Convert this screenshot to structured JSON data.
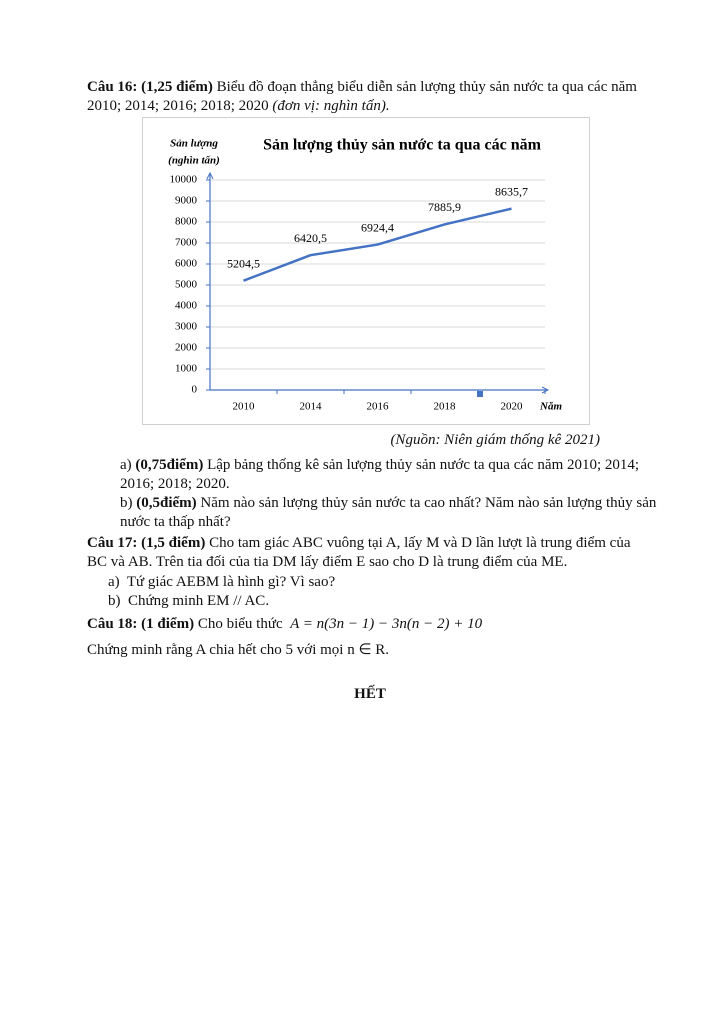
{
  "question_16": {
    "label": "Câu 16: (1,25 điểm)",
    "text": "Biểu đồ đoạn thẳng biểu diễn sản lượng thủy sản nước ta qua các năm 2010; 2014; 2016; 2018; 2020",
    "unit_note": "(đơn vị: nghìn tấn)."
  },
  "chart_data": {
    "type": "line",
    "title": "Sản lượng thủy sản nước ta qua các năm",
    "ylabel": [
      "Sản lượng",
      "(nghìn tấn)"
    ],
    "xlabel": "Năm",
    "categories": [
      "2010",
      "2014",
      "2016",
      "2018",
      "2020"
    ],
    "values": [
      5204.5,
      6420.5,
      6924.4,
      7885.9,
      8635.7
    ],
    "value_labels": [
      "5204,5",
      "6420,5",
      "6924,4",
      "7885,9",
      "8635,7"
    ],
    "color": "#4472c4",
    "ylim": [
      0,
      10000
    ],
    "yticks": [
      0,
      1000,
      2000,
      3000,
      4000,
      5000,
      6000,
      7000,
      8000,
      9000,
      10000
    ],
    "grid": true
  },
  "source": "(Nguồn: Niên giám thống kê 2021)",
  "question_16_parts": [
    {
      "label": "a)",
      "points": "(0,75điểm)",
      "text": "Lập bảng thống kê sản lượng thủy sản nước ta qua các năm 2010; 2014; 2016; 2018; 2020."
    },
    {
      "label": "b)",
      "points": "(0,5điểm)",
      "text": "Năm nào sản lượng thủy sản nước ta cao nhất? Năm nào sản lượng thủy sản nước ta thấp nhất?"
    }
  ],
  "question_17": {
    "label": "Câu 17: (1,5 điểm)",
    "text": "Cho tam giác ABC vuông tại A, lấy M và D lần lượt là trung điểm của BC và AB. Trên tia đối của tia DM lấy điểm E sao cho D là trung điểm của ME.",
    "parts": [
      {
        "label": "a)",
        "text": "Tứ giác AEBM là hình gì? Vì sao?"
      },
      {
        "label": "b)",
        "text": "Chứng minh EM // AC."
      }
    ]
  },
  "question_18": {
    "label": "Câu 18: (1 điểm)",
    "text": "Cho biểu thức",
    "formula": "A = n(3n − 1) − 3n(n − 2) + 10",
    "task": "Chứng minh rằng A chia hết cho 5 với mọi  n ∈ R."
  },
  "end": "HẾT"
}
